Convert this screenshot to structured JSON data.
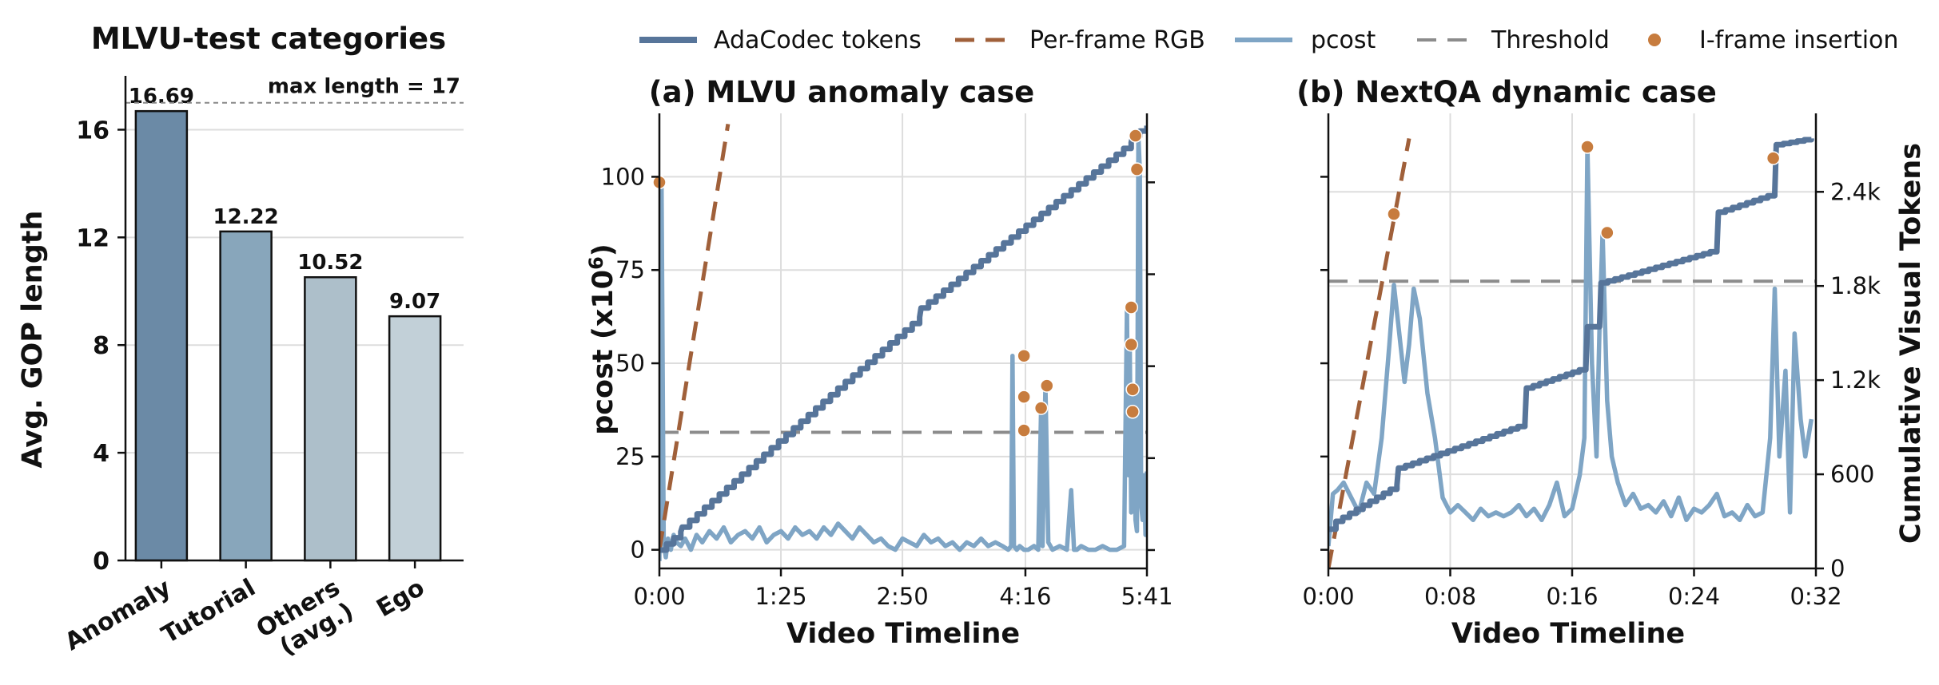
{
  "legend": {
    "items": [
      {
        "label": "AdaCodec tokens",
        "kind": "solid-thick",
        "color": "#57759a"
      },
      {
        "label": "Per-frame RGB",
        "kind": "dashed",
        "color": "#a0603a"
      },
      {
        "label": "pcost",
        "kind": "solid",
        "color": "#7fa5c5"
      },
      {
        "label": "Threshold",
        "kind": "dashed",
        "color": "#8c8c8c"
      },
      {
        "label": "I-frame insertion",
        "kind": "dot",
        "color": "#c77c3e"
      }
    ]
  },
  "chart_data": [
    {
      "type": "bar",
      "title": "MLVU-test categories",
      "ylabel": "Avg. GOP length",
      "categories": [
        "Anomaly",
        "Tutorial",
        "Others (avg.)",
        "Ego"
      ],
      "tick_labels": [
        [
          "Anomaly"
        ],
        [
          "Tutorial"
        ],
        [
          "Others",
          "(avg.)"
        ],
        [
          "Ego"
        ]
      ],
      "values": [
        16.69,
        12.22,
        10.52,
        9.07
      ],
      "value_labels": [
        "16.69",
        "12.22",
        "10.52",
        "9.07"
      ],
      "bar_colors": [
        "#6b8aa6",
        "#88a6bb",
        "#adbfca",
        "#c2d0d8"
      ],
      "ylim": [
        0,
        18
      ],
      "yticks": [
        0,
        4,
        8,
        12,
        16
      ],
      "reference_line": {
        "value": 17,
        "label": "max length = 17"
      },
      "grid": "horizontal"
    },
    {
      "type": "line",
      "title": "(a) MLVU anomaly case",
      "xlabel": "Video Timeline",
      "ylabel": "pcost (x10^6)",
      "ylabel_parts": {
        "base": "pcost (x10",
        "sup": "6",
        "close": ")"
      },
      "x_unit": "seconds",
      "xlim": [
        0,
        341
      ],
      "xticks": [
        0,
        85,
        170,
        256,
        341
      ],
      "xtick_labels": [
        "0:00",
        "1:25",
        "2:50",
        "4:16",
        "5:41"
      ],
      "ylim": [
        -5,
        117
      ],
      "yticks": [
        0,
        25,
        50,
        75,
        100
      ],
      "right_axis_ylim": [
        -120,
        2850
      ],
      "right_axis_ticks": [
        0,
        600,
        1200,
        1800,
        2400
      ],
      "grid": "both",
      "series": [
        {
          "name": "AdaCodec tokens",
          "axis": "right",
          "step_interval": 5.2,
          "x": [
            0,
            15,
            16,
            130,
            182,
            183,
            330,
            331,
            341
          ],
          "y": [
            0,
            120,
            150,
            1100,
            1520,
            1580,
            2660,
            2700,
            2770
          ]
        },
        {
          "name": "Per-frame RGB",
          "axis": "right",
          "x": [
            0,
            48
          ],
          "y": [
            0,
            2780
          ]
        },
        {
          "name": "pcost",
          "axis": "left",
          "x": [
            0,
            1.5,
            3,
            4.5,
            6,
            8,
            10,
            12,
            15,
            18,
            22,
            26,
            30,
            35,
            40,
            45,
            50,
            55,
            60,
            65,
            70,
            75,
            80,
            85,
            90,
            95,
            100,
            105,
            110,
            115,
            120,
            125,
            130,
            135,
            140,
            145,
            150,
            155,
            160,
            165,
            170,
            175,
            180,
            185,
            190,
            195,
            200,
            205,
            210,
            215,
            220,
            225,
            230,
            235,
            240,
            244,
            246,
            247,
            248,
            250,
            252,
            255,
            258,
            262,
            265,
            267,
            268,
            270,
            272,
            275,
            280,
            285,
            288,
            290,
            292,
            295,
            300,
            305,
            310,
            315,
            320,
            325,
            327,
            328,
            329,
            330,
            331,
            332,
            333,
            334,
            335,
            336,
            337,
            338,
            339,
            340,
            341
          ],
          "y": [
            -3,
            98,
            2,
            -2,
            3,
            0,
            4,
            2,
            1,
            3,
            0,
            4,
            2,
            5,
            3,
            6,
            2,
            4,
            5,
            3,
            6,
            2,
            4,
            5,
            3,
            6,
            4,
            5,
            3,
            6,
            4,
            7,
            5,
            3,
            6,
            4,
            2,
            3,
            1,
            0,
            3,
            2,
            1,
            4,
            2,
            3,
            1,
            2,
            0,
            2,
            1,
            3,
            1,
            2,
            1,
            0,
            1,
            52,
            1,
            0,
            1,
            0,
            0,
            1,
            0,
            38,
            1,
            44,
            2,
            0,
            1,
            0,
            16,
            0,
            0,
            1,
            0,
            0,
            1,
            0,
            0,
            1,
            65,
            20,
            55,
            10,
            43,
            37,
            8,
            5,
            111,
            102,
            12,
            8,
            20,
            4,
            21
          ]
        },
        {
          "name": "Threshold",
          "axis": "left",
          "x": [
            0,
            341
          ],
          "y": [
            31.5,
            31.5
          ]
        },
        {
          "name": "I-frame insertion",
          "axis": "left",
          "x": [
            0,
            255,
            255,
            255,
            267,
            271,
            330,
            330,
            331,
            331,
            333,
            334
          ],
          "y": [
            98.5,
            52,
            41,
            32,
            38,
            44,
            65,
            55,
            43,
            37,
            111,
            102
          ]
        }
      ]
    },
    {
      "type": "line",
      "title": "(b) NextQA dynamic case",
      "xlabel": "Video Timeline",
      "ylabel": "Cumulative Visual Tokens",
      "x_unit": "seconds",
      "xlim": [
        0,
        32
      ],
      "xticks": [
        0,
        8,
        16,
        24,
        32
      ],
      "xtick_labels": [
        "0:00",
        "0:08",
        "0:16",
        "0:24",
        "0:32"
      ],
      "ylim": [
        0,
        2900
      ],
      "yticks": [
        0,
        600,
        1200,
        1800,
        2400
      ],
      "ytick_labels": [
        "0",
        "600",
        "1.2k",
        "1.8k",
        "2.4k"
      ],
      "left_axis_ylim": [
        -5,
        117
      ],
      "grid": "both",
      "series": [
        {
          "name": "AdaCodec tokens",
          "axis": "right",
          "step_interval": 0.45,
          "x": [
            0,
            0.5,
            4.5,
            4.6,
            12.9,
            13,
            16.9,
            17,
            17.8,
            17.9,
            25.5,
            25.6,
            29.3,
            29.4,
            31.7
          ],
          "y": [
            250,
            300,
            530,
            640,
            920,
            1150,
            1280,
            1540,
            1540,
            1820,
            2030,
            2270,
            2390,
            2700,
            2740
          ]
        },
        {
          "name": "Per-frame RGB",
          "axis": "right",
          "x": [
            0,
            5.3
          ],
          "y": [
            0,
            2740
          ]
        },
        {
          "name": "pcost",
          "axis": "left",
          "x": [
            0,
            0.3,
            0.6,
            1,
            1.5,
            2,
            2.5,
            3,
            3.5,
            4,
            4.3,
            4.6,
            5,
            5.3,
            5.6,
            6,
            6.5,
            7,
            7.5,
            8,
            8.5,
            9,
            9.5,
            10,
            10.5,
            11,
            11.5,
            12,
            12.5,
            13,
            13.5,
            14,
            14.5,
            15,
            15.5,
            16,
            16.5,
            16.8,
            17,
            17.3,
            17.6,
            17.8,
            18,
            18.3,
            18.6,
            19,
            19.5,
            20,
            20.5,
            21,
            21.5,
            22,
            22.5,
            23,
            23.5,
            24,
            24.5,
            25,
            25.5,
            26,
            26.5,
            27,
            27.5,
            28,
            28.5,
            29,
            29.3,
            29.6,
            30,
            30.3,
            30.6,
            31,
            31.3,
            31.7
          ],
          "y": [
            1,
            15,
            16,
            18,
            14,
            10,
            18,
            15,
            30,
            55,
            71,
            60,
            45,
            55,
            70,
            62,
            42,
            30,
            14,
            10,
            12,
            10,
            8,
            11,
            9,
            10,
            9,
            10,
            12,
            9,
            11,
            8,
            12,
            18,
            9,
            11,
            20,
            30,
            108,
            50,
            25,
            60,
            85,
            40,
            25,
            18,
            12,
            15,
            11,
            12,
            10,
            13,
            9,
            14,
            8,
            11,
            10,
            12,
            15,
            9,
            10,
            8,
            12,
            9,
            10,
            30,
            70,
            25,
            48,
            10,
            58,
            35,
            25,
            35
          ]
        },
        {
          "name": "Threshold",
          "axis": "left",
          "x": [
            0,
            32
          ],
          "y": [
            72,
            72
          ]
        },
        {
          "name": "I-frame insertion",
          "axis": "left",
          "x": [
            4.3,
            17.0,
            18.3,
            29.2
          ],
          "y": [
            90,
            108,
            85,
            105
          ]
        }
      ]
    }
  ]
}
